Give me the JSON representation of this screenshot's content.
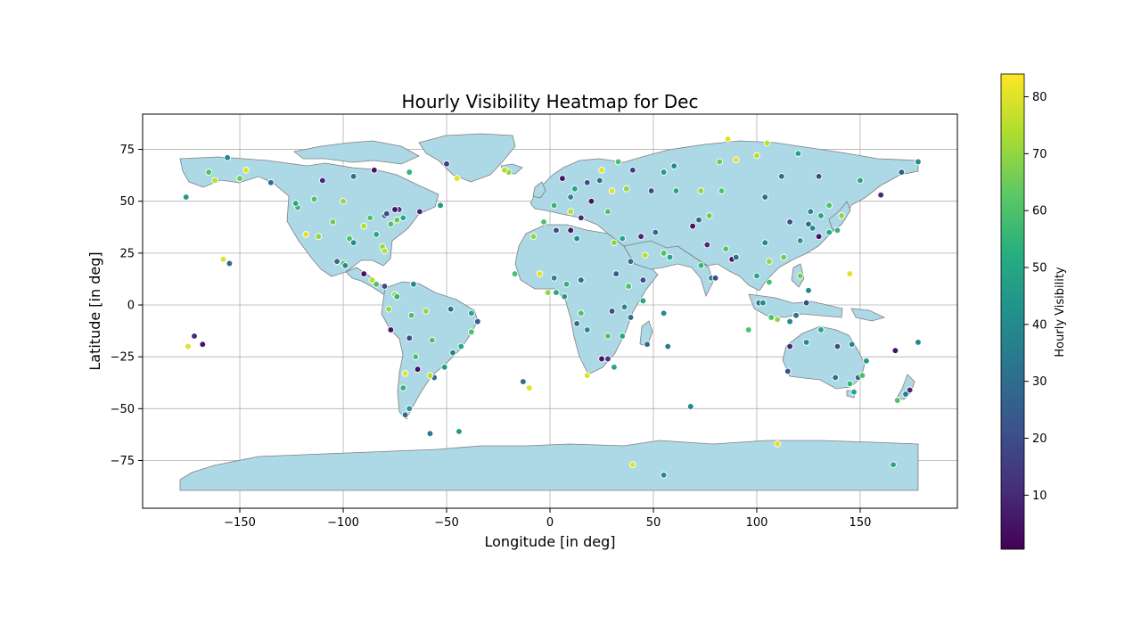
{
  "chart_data": {
    "type": "scatter",
    "title": "Hourly Visibility Heatmap for Dec",
    "xlabel": "Longitude [in deg]",
    "ylabel": "Latitude [in deg]",
    "xlim": [
      -197,
      197
    ],
    "ylim": [
      -98,
      92
    ],
    "xticks": [
      -150,
      -100,
      -50,
      0,
      50,
      100,
      150
    ],
    "xtick_labels": [
      "−150",
      "−100",
      "−50",
      "0",
      "50",
      "100",
      "150"
    ],
    "yticks": [
      -75,
      -50,
      -25,
      0,
      25,
      50,
      75
    ],
    "ytick_labels": [
      "−75",
      "−50",
      "−25",
      "0",
      "25",
      "50",
      "75"
    ],
    "grid": true,
    "land_color": "#add8e6",
    "border_color": "#808080",
    "colormap": "viridis",
    "colorbar": {
      "label": "Hourly Visibility",
      "range": [
        0.5,
        84
      ],
      "ticks": [
        10,
        20,
        30,
        40,
        50,
        60,
        70,
        80
      ],
      "tick_labels": [
        "10",
        "20",
        "30",
        "40",
        "50",
        "60",
        "70",
        "80"
      ]
    },
    "points": [
      [
        -122,
        47,
        55
      ],
      [
        -118,
        34,
        80
      ],
      [
        -112,
        33,
        70
      ],
      [
        -105,
        40,
        65
      ],
      [
        -97,
        32,
        60
      ],
      [
        -95,
        30,
        40
      ],
      [
        -90,
        38,
        75
      ],
      [
        -87,
        42,
        60
      ],
      [
        -84,
        34,
        50
      ],
      [
        -81,
        28,
        70
      ],
      [
        -80,
        26,
        75
      ],
      [
        -77,
        39,
        60
      ],
      [
        -74,
        41,
        65
      ],
      [
        -71,
        42,
        50
      ],
      [
        -80,
        43,
        35
      ],
      [
        -79,
        44,
        20
      ],
      [
        -73,
        46,
        15
      ],
      [
        -75,
        46,
        5
      ],
      [
        -63,
        45,
        10
      ],
      [
        -53,
        48,
        45
      ],
      [
        -100,
        50,
        70
      ],
      [
        -114,
        51,
        60
      ],
      [
        -123,
        49,
        50
      ],
      [
        -135,
        59,
        30
      ],
      [
        -150,
        61,
        65
      ],
      [
        -147,
        65,
        80
      ],
      [
        -156,
        71,
        40
      ],
      [
        -165,
        64,
        60
      ],
      [
        -162,
        60,
        75
      ],
      [
        -110,
        60,
        10
      ],
      [
        -95,
        62,
        30
      ],
      [
        -85,
        65,
        5
      ],
      [
        -68,
        64,
        55
      ],
      [
        -45,
        61,
        80
      ],
      [
        -50,
        68,
        15
      ],
      [
        -20,
        64,
        70
      ],
      [
        -22,
        65,
        75
      ],
      [
        -100,
        20,
        60
      ],
      [
        -99,
        19,
        40
      ],
      [
        -103,
        21,
        30
      ],
      [
        -90,
        15,
        5
      ],
      [
        -86,
        12,
        75
      ],
      [
        -84,
        10,
        60
      ],
      [
        -80,
        9,
        20
      ],
      [
        -75,
        5,
        70
      ],
      [
        -74,
        4,
        55
      ],
      [
        -66,
        10,
        40
      ],
      [
        -67,
        -5,
        60
      ],
      [
        -60,
        -3,
        70
      ],
      [
        -48,
        -2,
        30
      ],
      [
        -38,
        -4,
        50
      ],
      [
        -35,
        -8,
        25
      ],
      [
        -38,
        -13,
        60
      ],
      [
        -43,
        -20,
        50
      ],
      [
        -47,
        -23,
        40
      ],
      [
        -51,
        -30,
        45
      ],
      [
        -56,
        -35,
        30
      ],
      [
        -58,
        -34,
        75
      ],
      [
        -65,
        -25,
        60
      ],
      [
        -70,
        -33,
        80
      ],
      [
        -71,
        -40,
        55
      ],
      [
        -68,
        -50,
        45
      ],
      [
        -70,
        -53,
        30
      ],
      [
        -77,
        -12,
        5
      ],
      [
        -78,
        -2,
        70
      ],
      [
        -68,
        -16,
        20
      ],
      [
        -57,
        -17,
        60
      ],
      [
        -64,
        -31,
        5
      ],
      [
        -58,
        -62,
        35
      ],
      [
        -44,
        -61,
        45
      ],
      [
        -175,
        -20,
        80
      ],
      [
        -168,
        -19,
        5
      ],
      [
        -172,
        -15,
        10
      ],
      [
        -158,
        22,
        80
      ],
      [
        -155,
        20,
        30
      ],
      [
        -176,
        52,
        45
      ],
      [
        -10,
        -40,
        80
      ],
      [
        -13,
        -37,
        30
      ],
      [
        -3,
        40,
        60
      ],
      [
        2,
        48,
        55
      ],
      [
        10,
        52,
        40
      ],
      [
        20,
        50,
        5
      ],
      [
        30,
        55,
        80
      ],
      [
        37,
        56,
        70
      ],
      [
        28,
        45,
        60
      ],
      [
        15,
        42,
        10
      ],
      [
        10,
        45,
        75
      ],
      [
        24,
        60,
        30
      ],
      [
        18,
        59,
        20
      ],
      [
        12,
        56,
        50
      ],
      [
        6,
        61,
        5
      ],
      [
        25,
        65,
        80
      ],
      [
        40,
        65,
        15
      ],
      [
        33,
        69,
        60
      ],
      [
        -8,
        33,
        70
      ],
      [
        3,
        36,
        20
      ],
      [
        10,
        36,
        5
      ],
      [
        13,
        32,
        40
      ],
      [
        31,
        30,
        70
      ],
      [
        35,
        32,
        50
      ],
      [
        44,
        33,
        10
      ],
      [
        51,
        35,
        30
      ],
      [
        46,
        24,
        75
      ],
      [
        55,
        25,
        60
      ],
      [
        58,
        23,
        50
      ],
      [
        39,
        21,
        30
      ],
      [
        45,
        12,
        20
      ],
      [
        -17,
        15,
        60
      ],
      [
        -5,
        15,
        80
      ],
      [
        2,
        13,
        40
      ],
      [
        8,
        10,
        55
      ],
      [
        3,
        6,
        50
      ],
      [
        -1,
        6,
        70
      ],
      [
        7,
        4,
        45
      ],
      [
        15,
        12,
        30
      ],
      [
        32,
        15,
        25
      ],
      [
        38,
        9,
        60
      ],
      [
        45,
        2,
        50
      ],
      [
        36,
        -1,
        40
      ],
      [
        30,
        -3,
        20
      ],
      [
        39,
        -6,
        30
      ],
      [
        35,
        -15,
        50
      ],
      [
        28,
        -15,
        60
      ],
      [
        18,
        -12,
        40
      ],
      [
        13,
        -9,
        30
      ],
      [
        15,
        -4,
        60
      ],
      [
        25,
        -26,
        5
      ],
      [
        28,
        -26,
        15
      ],
      [
        18,
        -34,
        80
      ],
      [
        31,
        -30,
        50
      ],
      [
        47,
        -19,
        30
      ],
      [
        57,
        -20,
        35
      ],
      [
        55,
        -4,
        40
      ],
      [
        68,
        -49,
        40
      ],
      [
        69,
        38,
        5
      ],
      [
        72,
        41,
        30
      ],
      [
        77,
        43,
        65
      ],
      [
        76,
        29,
        10
      ],
      [
        73,
        19,
        55
      ],
      [
        78,
        13,
        40
      ],
      [
        80,
        13,
        20
      ],
      [
        88,
        22,
        5
      ],
      [
        85,
        27,
        60
      ],
      [
        90,
        23,
        30
      ],
      [
        100,
        14,
        50
      ],
      [
        106,
        11,
        60
      ],
      [
        106,
        21,
        70
      ],
      [
        104,
        30,
        40
      ],
      [
        116,
        40,
        20
      ],
      [
        121,
        31,
        45
      ],
      [
        113,
        23,
        65
      ],
      [
        125,
        39,
        30
      ],
      [
        127,
        37,
        40
      ],
      [
        130,
        33,
        5
      ],
      [
        135,
        35,
        50
      ],
      [
        139,
        36,
        55
      ],
      [
        141,
        43,
        70
      ],
      [
        135,
        48,
        60
      ],
      [
        131,
        43,
        50
      ],
      [
        126,
        45,
        40
      ],
      [
        104,
        52,
        30
      ],
      [
        83,
        55,
        60
      ],
      [
        73,
        55,
        70
      ],
      [
        61,
        55,
        50
      ],
      [
        49,
        55,
        20
      ],
      [
        55,
        64,
        45
      ],
      [
        60,
        67,
        40
      ],
      [
        82,
        69,
        65
      ],
      [
        90,
        70,
        80
      ],
      [
        100,
        72,
        75
      ],
      [
        112,
        62,
        30
      ],
      [
        130,
        62,
        20
      ],
      [
        150,
        60,
        50
      ],
      [
        160,
        53,
        10
      ],
      [
        170,
        64,
        25
      ],
      [
        178,
        69,
        40
      ],
      [
        120,
        73,
        50
      ],
      [
        86,
        80,
        80
      ],
      [
        105,
        78,
        75
      ],
      [
        96,
        -12,
        60
      ],
      [
        101,
        1,
        30
      ],
      [
        103,
        1,
        40
      ],
      [
        107,
        -6,
        60
      ],
      [
        110,
        -7,
        70
      ],
      [
        116,
        -8,
        40
      ],
      [
        119,
        -5,
        30
      ],
      [
        124,
        1,
        20
      ],
      [
        121,
        14,
        65
      ],
      [
        125,
        7,
        40
      ],
      [
        145,
        15,
        80
      ],
      [
        115,
        -32,
        20
      ],
      [
        116,
        -20,
        10
      ],
      [
        124,
        -18,
        40
      ],
      [
        131,
        -12,
        50
      ],
      [
        139,
        -20,
        20
      ],
      [
        146,
        -19,
        40
      ],
      [
        149,
        -35,
        30
      ],
      [
        151,
        -34,
        60
      ],
      [
        153,
        -27,
        45
      ],
      [
        145,
        -38,
        55
      ],
      [
        138,
        -35,
        30
      ],
      [
        147,
        -42,
        50
      ],
      [
        167,
        -22,
        5
      ],
      [
        174,
        -41,
        10
      ],
      [
        172,
        -43,
        35
      ],
      [
        168,
        -46,
        60
      ],
      [
        178,
        -18,
        40
      ],
      [
        166,
        -77,
        50
      ],
      [
        110,
        -67,
        80
      ],
      [
        40,
        -77,
        80
      ],
      [
        55,
        -82,
        40
      ]
    ]
  }
}
